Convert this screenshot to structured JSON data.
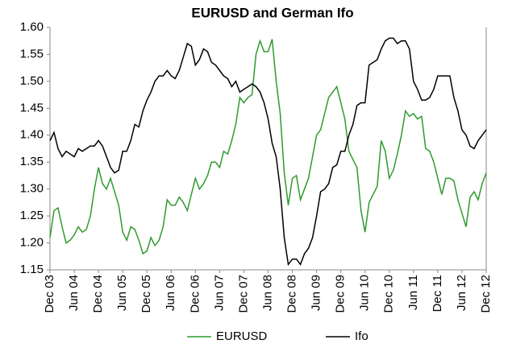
{
  "chart_data": {
    "type": "line",
    "title": "EURUSD and German Ifo",
    "categories": [
      "Dec 03",
      null,
      null,
      null,
      null,
      null,
      "Jun 04",
      null,
      null,
      null,
      null,
      null,
      "Dec 04",
      null,
      null,
      null,
      null,
      null,
      "Jun 05",
      null,
      null,
      null,
      null,
      null,
      "Dec 05",
      null,
      null,
      null,
      null,
      null,
      "Jun 06",
      null,
      null,
      null,
      null,
      null,
      "Dec 06",
      null,
      null,
      null,
      null,
      null,
      "Jun 07",
      null,
      null,
      null,
      null,
      null,
      "Dec 07",
      null,
      null,
      null,
      null,
      null,
      "Jun 08",
      null,
      null,
      null,
      null,
      null,
      "Dec 08",
      null,
      null,
      null,
      null,
      null,
      "Jun 09",
      null,
      null,
      null,
      null,
      null,
      "Dec 09",
      null,
      null,
      null,
      null,
      null,
      "Jun 10",
      null,
      null,
      null,
      null,
      null,
      "Dec 10",
      null,
      null,
      null,
      null,
      null,
      "Jun 11",
      null,
      null,
      null,
      null,
      null,
      "Dec 11",
      null,
      null,
      null,
      null,
      null,
      "Jun 12",
      null,
      null,
      null,
      null,
      null,
      "Dec 12"
    ],
    "series": [
      {
        "name": "EURUSD",
        "color": "#2e9a2e",
        "values": [
          1.21,
          1.26,
          1.265,
          1.23,
          1.2,
          1.205,
          1.215,
          1.23,
          1.22,
          1.225,
          1.25,
          1.3,
          1.34,
          1.31,
          1.3,
          1.32,
          1.295,
          1.27,
          1.22,
          1.205,
          1.23,
          1.225,
          1.205,
          1.18,
          1.185,
          1.21,
          1.195,
          1.205,
          1.23,
          1.28,
          1.27,
          1.27,
          1.285,
          1.275,
          1.26,
          1.29,
          1.32,
          1.3,
          1.31,
          1.325,
          1.35,
          1.35,
          1.34,
          1.37,
          1.365,
          1.39,
          1.42,
          1.47,
          1.46,
          1.47,
          1.475,
          1.55,
          1.575,
          1.555,
          1.555,
          1.578,
          1.5,
          1.44,
          1.33,
          1.27,
          1.32,
          1.325,
          1.28,
          1.3,
          1.32,
          1.36,
          1.4,
          1.41,
          1.44,
          1.47,
          1.48,
          1.49,
          1.46,
          1.43,
          1.37,
          1.355,
          1.34,
          1.26,
          1.22,
          1.275,
          1.29,
          1.305,
          1.39,
          1.37,
          1.32,
          1.335,
          1.365,
          1.4,
          1.445,
          1.435,
          1.44,
          1.43,
          1.435,
          1.375,
          1.37,
          1.35,
          1.32,
          1.29,
          1.32,
          1.32,
          1.315,
          1.28,
          1.255,
          1.23,
          1.285,
          1.295,
          1.28,
          1.31,
          1.33
        ]
      },
      {
        "name": "Ifo",
        "color": "#000000",
        "values": [
          1.39,
          1.405,
          1.375,
          1.36,
          1.37,
          1.365,
          1.36,
          1.375,
          1.37,
          1.375,
          1.38,
          1.38,
          1.39,
          1.38,
          1.36,
          1.34,
          1.33,
          1.335,
          1.37,
          1.37,
          1.39,
          1.42,
          1.415,
          1.445,
          1.465,
          1.48,
          1.5,
          1.51,
          1.51,
          1.52,
          1.51,
          1.505,
          1.52,
          1.545,
          1.57,
          1.565,
          1.53,
          1.54,
          1.56,
          1.555,
          1.535,
          1.53,
          1.52,
          1.51,
          1.505,
          1.49,
          1.5,
          1.48,
          1.485,
          1.49,
          1.495,
          1.49,
          1.48,
          1.46,
          1.43,
          1.385,
          1.36,
          1.3,
          1.21,
          1.16,
          1.17,
          1.17,
          1.16,
          1.18,
          1.19,
          1.21,
          1.25,
          1.295,
          1.3,
          1.31,
          1.34,
          1.345,
          1.37,
          1.37,
          1.4,
          1.42,
          1.455,
          1.46,
          1.46,
          1.53,
          1.535,
          1.54,
          1.56,
          1.575,
          1.58,
          1.58,
          1.57,
          1.575,
          1.575,
          1.56,
          1.5,
          1.485,
          1.465,
          1.465,
          1.47,
          1.485,
          1.51,
          1.51,
          1.51,
          1.51,
          1.47,
          1.445,
          1.41,
          1.4,
          1.38,
          1.375,
          1.39,
          1.4,
          1.41
        ]
      }
    ],
    "ylim": [
      1.15,
      1.6
    ],
    "yticks": [
      1.15,
      {
        "value": 1.2,
        "label": "1.20"
      },
      1.25,
      {
        "value": 1.3,
        "label": "1.30"
      },
      1.35,
      {
        "value": 1.4,
        "label": "1.40"
      },
      1.45,
      {
        "value": 1.5,
        "label": "1.50"
      },
      1.55,
      {
        "value": 1.6,
        "label": "1.60"
      }
    ],
    "legend": "bottom"
  }
}
